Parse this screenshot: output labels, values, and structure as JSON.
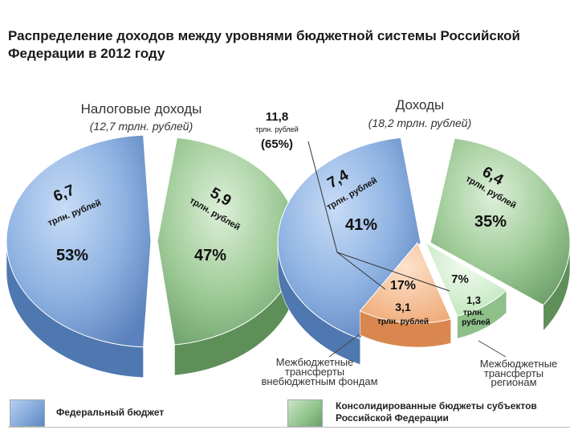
{
  "title": "Распределение доходов между уровнями бюджетной системы Российской Федерации в 2012 году",
  "colors": {
    "federal": "#7fa6d8",
    "regional": "#8fc18a",
    "offbudget": "#f2b98a",
    "regional_transfer": "#cfeccf"
  },
  "chart_data": [
    {
      "type": "pie",
      "title": "Налоговые доходы",
      "subtitle": "(12,7 трлн. рублей)",
      "slices": [
        {
          "name": "Федеральный бюджет",
          "value": 6.7,
          "value_label": "6,7",
          "unit": "трлн. рублей",
          "percent": 53,
          "percent_label": "53%"
        },
        {
          "name": "Консолидированные бюджеты субъектов Российской Федерации",
          "value": 5.9,
          "value_label": "5,9",
          "unit": "трлн. рублей",
          "percent": 47,
          "percent_label": "47%"
        }
      ]
    },
    {
      "type": "pie",
      "title": "Доходы",
      "subtitle": "(18,2 трлн. рублей)",
      "slices": [
        {
          "name": "Федеральный бюджет",
          "value": 7.4,
          "value_label": "7,4",
          "unit": "трлн. рублей",
          "percent": 41,
          "percent_label": "41%"
        },
        {
          "name": "Межбюджетные трансферты внебюджетным фондам",
          "value": 3.1,
          "value_label": "3,1",
          "unit": "трлн. рублей",
          "percent": 17,
          "percent_label": "17%"
        },
        {
          "name": "Межбюджетные трансферты регионам",
          "value": 1.3,
          "value_label": "1,3",
          "unit": "трлн. рублей",
          "percent": 7,
          "percent_label": "7%"
        },
        {
          "name": "Консолидированные бюджеты субъектов Российской Федерации",
          "value": 6.4,
          "value_label": "6,4",
          "unit": "трлн. рублей",
          "percent": 35,
          "percent_label": "35%"
        }
      ],
      "annotations": [
        {
          "value_label": "11,8",
          "unit": "трлн. рублей",
          "percent_label": "(65%)"
        },
        {
          "text": "Межбюджетные трансферты внебюджетным фондам"
        },
        {
          "text": "Межбюджетные трансферты регионам"
        }
      ]
    }
  ],
  "legend": [
    {
      "label": "Федеральный бюджет",
      "color": "#7fa6d8"
    },
    {
      "label": "Консолидированные бюджеты субъектов Российской Федерации",
      "color": "#8fc18a"
    }
  ]
}
